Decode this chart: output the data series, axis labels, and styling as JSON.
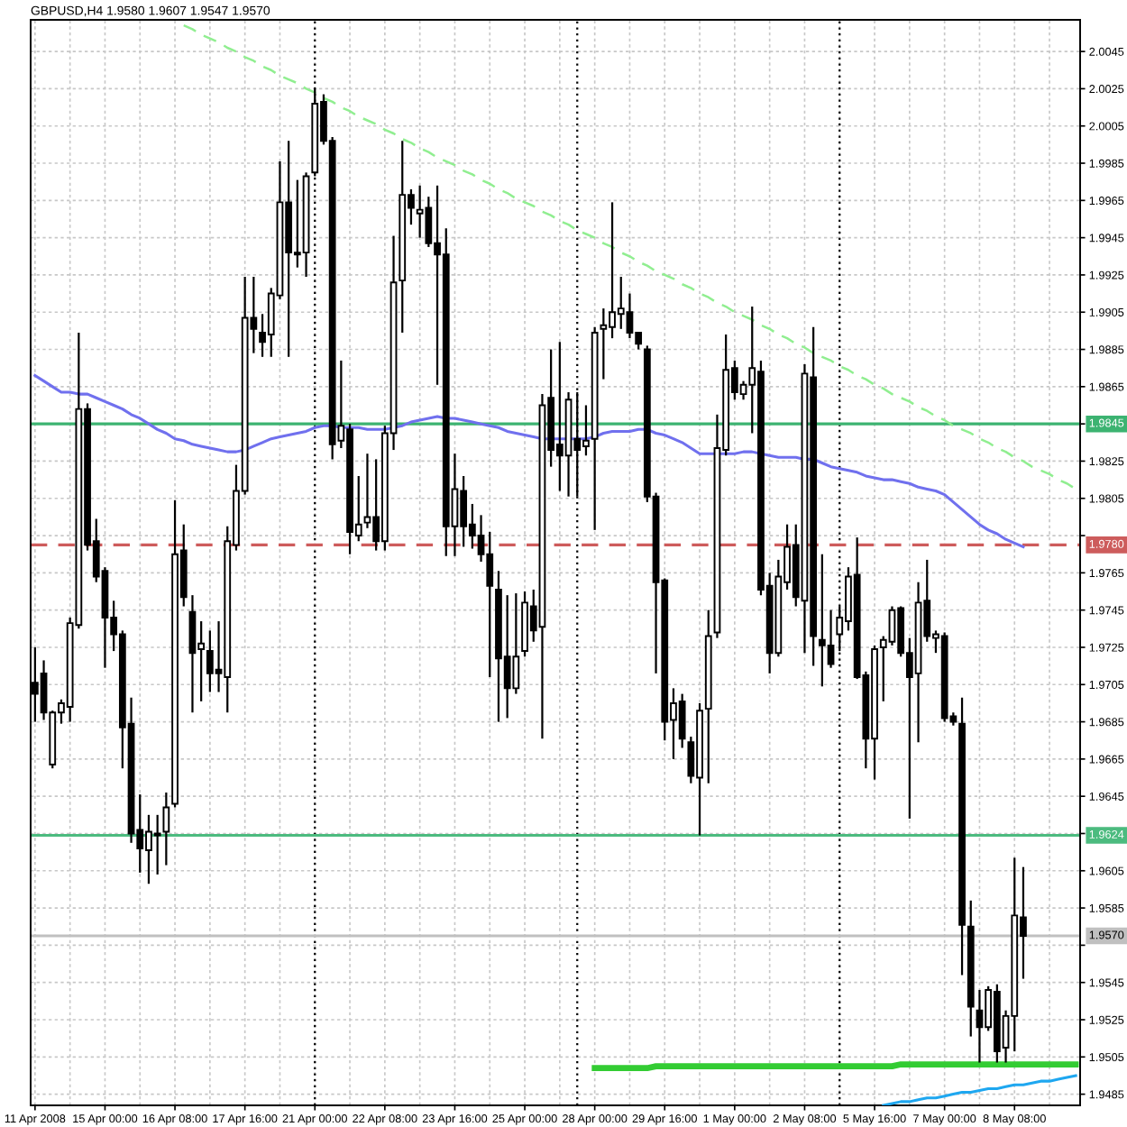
{
  "chart_data": {
    "type": "candlestick",
    "title": "GBPUSD,H4 1.9580 1.9607 1.9547 1.9570",
    "color": "#000000",
    "categories": [
      "11 Apr 2008",
      null,
      null,
      null,
      null,
      null,
      null,
      null,
      "15 Apr 00:00",
      null,
      null,
      null,
      null,
      null,
      null,
      null,
      "16 Apr 08:00",
      null,
      null,
      null,
      null,
      null,
      null,
      null,
      "17 Apr 16:00",
      null,
      null,
      null,
      null,
      null,
      null,
      null,
      "21 Apr 00:00",
      null,
      null,
      null,
      null,
      null,
      null,
      null,
      "22 Apr 08:00",
      null,
      null,
      null,
      null,
      null,
      null,
      null,
      "23 Apr 16:00",
      null,
      null,
      null,
      null,
      null,
      null,
      null,
      "25 Apr 00:00",
      null,
      null,
      null,
      null,
      null,
      null,
      null,
      "28 Apr 00:00",
      null,
      null,
      null,
      null,
      null,
      null,
      null,
      "29 Apr 16:00",
      null,
      null,
      null,
      null,
      null,
      null,
      null,
      "1 May 00:00",
      null,
      null,
      null,
      null,
      null,
      null,
      null,
      "2 May 08:00",
      null,
      null,
      null,
      null,
      null,
      null,
      null,
      "5 May 16:00",
      null,
      null,
      null,
      null,
      null,
      null,
      null,
      "7 May 00:00",
      null,
      null,
      null,
      null,
      null,
      null,
      null,
      "8 May 08:00",
      null,
      null,
      null,
      null,
      null,
      null,
      null
    ],
    "ohlc": [
      [
        1.9706,
        1.9725,
        1.9685,
        1.97
      ],
      [
        1.9711,
        1.9718,
        1.9686,
        1.969
      ],
      [
        1.9662,
        1.9691,
        1.966,
        1.969
      ],
      [
        1.969,
        1.9697,
        1.9684,
        1.9695
      ],
      [
        1.9693,
        1.9741,
        1.9685,
        1.9738
      ],
      [
        1.9737,
        1.9894,
        1.9735,
        1.9853
      ],
      [
        1.9853,
        1.9856,
        1.9777,
        1.978
      ],
      [
        1.9782,
        1.9794,
        1.976,
        1.9763
      ],
      [
        1.9766,
        1.9768,
        1.9714,
        1.9741
      ],
      [
        1.9741,
        1.975,
        1.9723,
        1.9732
      ],
      [
        1.9732,
        1.9734,
        1.966,
        1.9682
      ],
      [
        1.9684,
        1.9698,
        1.962,
        1.9625
      ],
      [
        1.9627,
        1.9646,
        1.9604,
        1.9617
      ],
      [
        1.9616,
        1.9635,
        1.9598,
        1.9626
      ],
      [
        1.9624,
        1.9635,
        1.9603,
        1.9625
      ],
      [
        1.9626,
        1.9647,
        1.9608,
        1.9639
      ],
      [
        1.9641,
        1.9804,
        1.9639,
        1.9775
      ],
      [
        1.9777,
        1.9791,
        1.9747,
        1.9752
      ],
      [
        1.9744,
        1.9753,
        1.969,
        1.9722
      ],
      [
        1.9724,
        1.9739,
        1.9696,
        1.9727
      ],
      [
        1.9723,
        1.9734,
        1.9701,
        1.9711
      ],
      [
        1.9713,
        1.9739,
        1.9701,
        1.9711
      ],
      [
        1.9709,
        1.979,
        1.969,
        1.9782
      ],
      [
        1.978,
        1.9823,
        1.9777,
        1.9809
      ],
      [
        1.9809,
        1.9924,
        1.9807,
        1.9902
      ],
      [
        1.9902,
        1.9924,
        1.9883,
        1.9896
      ],
      [
        1.9894,
        1.9904,
        1.9881,
        1.9889
      ],
      [
        1.9893,
        1.9918,
        1.9881,
        1.9915
      ],
      [
        1.9914,
        1.9986,
        1.9912,
        1.9964
      ],
      [
        1.9964,
        1.9997,
        1.9881,
        1.9937
      ],
      [
        1.9937,
        1.9976,
        1.9929,
        1.9936
      ],
      [
        1.9937,
        1.998,
        1.9924,
        1.9978
      ],
      [
        1.998,
        2.0025,
        1.9978,
        2.0017
      ],
      [
        2.0018,
        2.0022,
        1.9995,
        1.9997
      ],
      [
        1.9997,
        1.9999,
        1.9826,
        1.9834
      ],
      [
        1.9836,
        1.9879,
        1.9832,
        1.9844
      ],
      [
        1.9842,
        1.9845,
        1.9775,
        1.9787
      ],
      [
        1.9785,
        1.9817,
        1.9782,
        1.9791
      ],
      [
        1.9792,
        1.9829,
        1.9789,
        1.9795
      ],
      [
        1.9795,
        1.9826,
        1.9777,
        1.9782
      ],
      [
        1.9782,
        1.9844,
        1.9777,
        1.984
      ],
      [
        1.984,
        1.9946,
        1.9831,
        1.9921
      ],
      [
        1.9922,
        1.9997,
        1.9894,
        1.9968
      ],
      [
        1.9968,
        1.9971,
        1.9952,
        1.9961
      ],
      [
        1.9958,
        1.9973,
        1.9945,
        1.996
      ],
      [
        1.9961,
        1.9967,
        1.994,
        1.9942
      ],
      [
        1.9942,
        1.9973,
        1.9866,
        1.9936
      ],
      [
        1.9936,
        1.995,
        1.9774,
        1.979
      ],
      [
        1.979,
        1.9829,
        1.9774,
        1.981
      ],
      [
        1.9809,
        1.9817,
        1.9779,
        1.979
      ],
      [
        1.9791,
        1.9802,
        1.9778,
        1.9785
      ],
      [
        1.9785,
        1.9796,
        1.9771,
        1.9775
      ],
      [
        1.9775,
        1.9787,
        1.9709,
        1.9758
      ],
      [
        1.9756,
        1.9766,
        1.9685,
        1.9719
      ],
      [
        1.972,
        1.9753,
        1.9687,
        1.9703
      ],
      [
        1.9703,
        1.9754,
        1.97,
        1.972
      ],
      [
        1.9723,
        1.9755,
        1.972,
        1.9749
      ],
      [
        1.9747,
        1.9756,
        1.9728,
        1.9734
      ],
      [
        1.9736,
        1.9861,
        1.9676,
        1.9855
      ],
      [
        1.9859,
        1.9885,
        1.9822,
        1.9831
      ],
      [
        1.9834,
        1.9889,
        1.9809,
        1.9828
      ],
      [
        1.9828,
        1.9862,
        1.9806,
        1.9858
      ],
      [
        1.9837,
        1.9862,
        1.9806,
        1.9831
      ],
      [
        1.9833,
        1.9855,
        1.9828,
        1.9836
      ],
      [
        1.9837,
        1.9897,
        1.9788,
        1.9894
      ],
      [
        1.9896,
        1.9907,
        1.9869,
        1.9898
      ],
      [
        1.9897,
        1.9964,
        1.9891,
        1.9905
      ],
      [
        1.9904,
        1.9924,
        1.9896,
        1.9907
      ],
      [
        1.9905,
        1.9915,
        1.9891,
        1.9894
      ],
      [
        1.9894,
        1.9894,
        1.9885,
        1.9888
      ],
      [
        1.9885,
        1.9887,
        1.9803,
        1.9806
      ],
      [
        1.9806,
        1.9808,
        1.9711,
        1.976
      ],
      [
        1.9761,
        1.9762,
        1.9675,
        1.9685
      ],
      [
        1.9686,
        1.9703,
        1.9665,
        1.9695
      ],
      [
        1.9696,
        1.97,
        1.9671,
        1.9676
      ],
      [
        1.9674,
        1.9677,
        1.9652,
        1.9656
      ],
      [
        1.9655,
        1.9695,
        1.9624,
        1.9691
      ],
      [
        1.9692,
        1.9745,
        1.9652,
        1.9731
      ],
      [
        1.9733,
        1.985,
        1.973,
        1.9832
      ],
      [
        1.9831,
        1.9893,
        1.9828,
        1.9874
      ],
      [
        1.9875,
        1.9879,
        1.9858,
        1.9862
      ],
      [
        1.9861,
        1.9868,
        1.9858,
        1.9866
      ],
      [
        1.9866,
        1.9908,
        1.984,
        1.9875
      ],
      [
        1.9873,
        1.9879,
        1.9753,
        1.9756
      ],
      [
        1.9758,
        1.9765,
        1.9711,
        1.9722
      ],
      [
        1.9722,
        1.9772,
        1.972,
        1.9763
      ],
      [
        1.976,
        1.9791,
        1.9756,
        1.9779
      ],
      [
        1.978,
        1.9791,
        1.9747,
        1.9752
      ],
      [
        1.975,
        1.9877,
        1.9722,
        1.9872
      ],
      [
        1.987,
        1.9897,
        1.9715,
        1.9731
      ],
      [
        1.9729,
        1.9775,
        1.9704,
        1.9726
      ],
      [
        1.9726,
        1.9745,
        1.9714,
        1.9716
      ],
      [
        1.9732,
        1.9747,
        1.9723,
        1.9741
      ],
      [
        1.9739,
        1.9768,
        1.9734,
        1.9763
      ],
      [
        1.9764,
        1.9784,
        1.9708,
        1.9709
      ],
      [
        1.971,
        1.9712,
        1.966,
        1.9676
      ],
      [
        1.9676,
        1.9726,
        1.9654,
        1.9724
      ],
      [
        1.9725,
        1.9731,
        1.9696,
        1.9729
      ],
      [
        1.9728,
        1.9747,
        1.9726,
        1.9745
      ],
      [
        1.9746,
        1.9747,
        1.972,
        1.9722
      ],
      [
        1.9722,
        1.973,
        1.9633,
        1.9709
      ],
      [
        1.9711,
        1.976,
        1.9674,
        1.9749
      ],
      [
        1.975,
        1.9772,
        1.9728,
        1.9731
      ],
      [
        1.973,
        1.9734,
        1.9722,
        1.9732
      ],
      [
        1.9731,
        1.9733,
        1.9685,
        1.9687
      ],
      [
        1.9688,
        1.969,
        1.9683,
        1.9685
      ],
      [
        1.9684,
        1.9698,
        1.9549,
        1.9576
      ],
      [
        1.9575,
        1.9589,
        1.9516,
        1.9532
      ],
      [
        1.953,
        1.9541,
        1.9502,
        1.9521
      ],
      [
        1.9521,
        1.9543,
        1.9519,
        1.9541
      ],
      [
        1.954,
        1.9544,
        1.9502,
        1.9508
      ],
      [
        1.951,
        1.953,
        1.9502,
        1.9527
      ],
      [
        1.9527,
        1.9612,
        1.9508,
        1.9581
      ],
      [
        1.958,
        1.9607,
        1.9547,
        1.957
      ],
      null,
      null,
      null,
      null,
      null,
      null
    ],
    "series": [
      {
        "type": "line",
        "color": "#7070ee",
        "values": [
          1.9871,
          1.9868,
          1.9865,
          1.9862,
          1.9862,
          1.9861,
          1.9861,
          1.9859,
          1.9857,
          1.9855,
          1.9853,
          1.985,
          1.9848,
          1.9845,
          1.9842,
          1.984,
          1.9837,
          1.9836,
          1.9834,
          1.9833,
          1.9832,
          1.9831,
          1.983,
          1.983,
          1.9831,
          1.9833,
          1.9835,
          1.9837,
          1.9838,
          1.9839,
          1.984,
          1.9841,
          1.9843,
          1.9844,
          1.9844,
          1.9843,
          1.9843,
          1.9843,
          1.9842,
          1.9842,
          1.9842,
          1.9843,
          1.9844,
          1.9846,
          1.9847,
          1.9848,
          1.9849,
          1.9848,
          1.9848,
          1.9847,
          1.9846,
          1.9845,
          1.9844,
          1.9843,
          1.9841,
          1.984,
          1.9839,
          1.9838,
          1.9837,
          1.9837,
          1.9837,
          1.9837,
          1.9837,
          1.9837,
          1.9838,
          1.984,
          1.9841,
          1.9841,
          1.9841,
          1.9842,
          1.9842,
          1.984,
          1.9839,
          1.9837,
          1.9835,
          1.9832,
          1.9829,
          1.9829,
          1.9829,
          1.9829,
          1.9829,
          1.983,
          1.983,
          1.9829,
          1.9828,
          1.9827,
          1.9827,
          1.9827,
          1.9826,
          1.9826,
          1.9824,
          1.9822,
          1.9821,
          1.982,
          1.9819,
          1.9817,
          1.9816,
          1.9815,
          1.9815,
          1.9814,
          1.9813,
          1.9811,
          1.981,
          1.9809,
          1.9807,
          1.9803,
          1.9799,
          1.9795,
          1.9791,
          1.9788,
          1.9786,
          1.9783,
          1.9781,
          1.9779,
          null,
          null,
          null,
          null,
          null,
          null
        ]
      },
      {
        "type": "line",
        "color": "#90ee90",
        "line_style": "dashed",
        "values": [
          null,
          null,
          null,
          null,
          null,
          null,
          null,
          null,
          null,
          null,
          null,
          null,
          null,
          null,
          null,
          null,
          null,
          2.0059,
          2.0057,
          2.0054,
          2.0052,
          2.005,
          2.0047,
          2.0045,
          2.0042,
          2.004,
          2.0037,
          2.0035,
          2.0032,
          2.003,
          2.0028,
          2.0025,
          2.0023,
          2.002,
          2.0018,
          2.0015,
          2.0013,
          2.001,
          2.0008,
          2.0006,
          2.0003,
          2.0001,
          1.9998,
          1.9996,
          1.9993,
          1.9991,
          1.9988,
          1.9986,
          1.9984,
          1.9981,
          1.9979,
          1.9976,
          1.9974,
          1.9971,
          1.9969,
          1.9966,
          1.9964,
          1.9962,
          1.9959,
          1.9957,
          1.9954,
          1.9952,
          1.9949,
          1.9947,
          1.9945,
          1.9942,
          1.994,
          1.9937,
          1.9935,
          1.9932,
          1.993,
          1.9927,
          1.9925,
          1.9923,
          1.992,
          1.9918,
          1.9915,
          1.9913,
          1.991,
          1.9908,
          1.9905,
          1.9903,
          1.9901,
          1.9898,
          1.9896,
          1.9893,
          1.9891,
          1.9888,
          1.9886,
          1.9883,
          1.9881,
          1.9879,
          1.9876,
          1.9874,
          1.9871,
          1.9869,
          1.9866,
          1.9864,
          1.9861,
          1.9859,
          1.9857,
          1.9854,
          1.9852,
          1.9849,
          1.9847,
          1.9844,
          1.9842,
          1.984,
          1.9837,
          1.9835,
          1.9832,
          1.983,
          1.9827,
          1.9825,
          1.9822,
          1.982,
          1.9818,
          1.9815,
          1.9813,
          1.981
        ]
      },
      {
        "type": "line",
        "color": "#33cc33",
        "values": [
          null,
          null,
          null,
          null,
          null,
          null,
          null,
          null,
          null,
          null,
          null,
          null,
          null,
          null,
          null,
          null,
          null,
          null,
          null,
          null,
          null,
          null,
          null,
          null,
          null,
          null,
          null,
          null,
          null,
          null,
          null,
          null,
          null,
          null,
          null,
          null,
          null,
          null,
          null,
          null,
          null,
          null,
          null,
          null,
          null,
          null,
          null,
          null,
          null,
          null,
          null,
          null,
          null,
          null,
          null,
          null,
          null,
          null,
          null,
          null,
          null,
          null,
          null,
          null,
          1.9499,
          1.9499,
          1.9499,
          1.9499,
          1.9499,
          1.9499,
          1.9499,
          1.95,
          1.95,
          1.95,
          1.95,
          1.95,
          1.95,
          1.95,
          1.95,
          1.95,
          1.95,
          1.95,
          1.95,
          1.95,
          1.95,
          1.95,
          1.95,
          1.95,
          1.95,
          1.95,
          1.95,
          1.95,
          1.95,
          1.95,
          1.95,
          1.95,
          1.95,
          1.95,
          1.95,
          1.9501,
          1.9501,
          1.9501,
          1.9501,
          1.9501,
          1.9501,
          1.9501,
          1.9501,
          1.9501,
          1.9501,
          1.9501,
          1.9501,
          1.9501,
          1.9501,
          1.9501,
          1.9501,
          1.9501,
          1.9501,
          1.9501,
          1.9501,
          1.9501
        ]
      },
      {
        "type": "line",
        "color": "#1ea7f0",
        "values": [
          null,
          null,
          null,
          null,
          null,
          null,
          null,
          null,
          null,
          null,
          null,
          null,
          null,
          null,
          null,
          null,
          null,
          null,
          null,
          null,
          null,
          null,
          null,
          null,
          null,
          null,
          null,
          null,
          null,
          null,
          null,
          null,
          null,
          null,
          null,
          null,
          null,
          null,
          null,
          null,
          null,
          null,
          null,
          null,
          null,
          null,
          null,
          null,
          null,
          null,
          null,
          null,
          null,
          null,
          null,
          null,
          null,
          null,
          null,
          null,
          null,
          null,
          null,
          null,
          null,
          null,
          null,
          null,
          null,
          null,
          null,
          null,
          null,
          null,
          null,
          null,
          null,
          null,
          null,
          null,
          null,
          null,
          null,
          null,
          null,
          null,
          null,
          null,
          null,
          null,
          null,
          null,
          null,
          null,
          null,
          null,
          null,
          1.9479,
          1.948,
          1.9481,
          1.9481,
          1.9482,
          1.9483,
          1.9483,
          1.9484,
          1.9485,
          1.9486,
          1.9486,
          1.9487,
          1.9488,
          1.9488,
          1.9489,
          1.949,
          1.949,
          1.9491,
          1.9492,
          1.9492,
          1.9493,
          1.9494,
          1.9495
        ]
      }
    ],
    "ylim": [
      1.9479,
      2.0062
    ],
    "yticks": [
      2.0045,
      2.0025,
      2.0005,
      1.9985,
      1.9965,
      1.9945,
      1.9925,
      1.9905,
      1.9885,
      1.9865,
      {
        "value": 1.9845,
        "label": null
      },
      1.9825,
      1.9805,
      {
        "value": 1.9785,
        "label": null
      },
      1.9765,
      1.9745,
      1.9725,
      1.9705,
      1.9685,
      1.9665,
      1.9645,
      {
        "value": 1.9625,
        "label": null
      },
      1.9605,
      1.9585,
      {
        "value": 1.9565,
        "label": null
      },
      1.9545,
      1.9525,
      1.9505,
      1.9485
    ],
    "ref_lines": [
      {
        "axis": "y",
        "value": 1.9845,
        "label": "1.9845",
        "color": "#3cb371"
      },
      {
        "axis": "y",
        "value": 1.978,
        "label": "1.9780",
        "color": "#cd5c5c",
        "line_style": "dashed"
      },
      {
        "axis": "y",
        "value": 1.9624,
        "label": "1.9624",
        "color": "#4cbb7f"
      },
      {
        "axis": "y",
        "value": 1.957,
        "label": "1.9570",
        "color": "#c0c0c0"
      }
    ],
    "grid": true
  }
}
